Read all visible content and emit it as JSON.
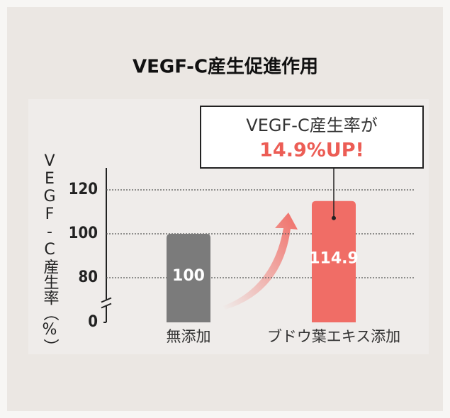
{
  "chart_data": {
    "type": "bar",
    "title": "VEGF-C産生促進作用",
    "y_axis_label": "VEGF-C産生率（%）",
    "categories": [
      "無添加",
      "ブドウ葉エキス添加"
    ],
    "values": [
      100,
      114.9
    ],
    "colors": [
      "#7b7b7b",
      "#f06d66"
    ],
    "annotation": {
      "line1": "VEGF-C産生率が",
      "line2": "14.9%UP!",
      "color": "#ec5d55"
    },
    "ylim": [
      0,
      130
    ],
    "yticks": [
      0,
      80,
      100,
      120
    ],
    "axis_break": true,
    "grid": true
  }
}
